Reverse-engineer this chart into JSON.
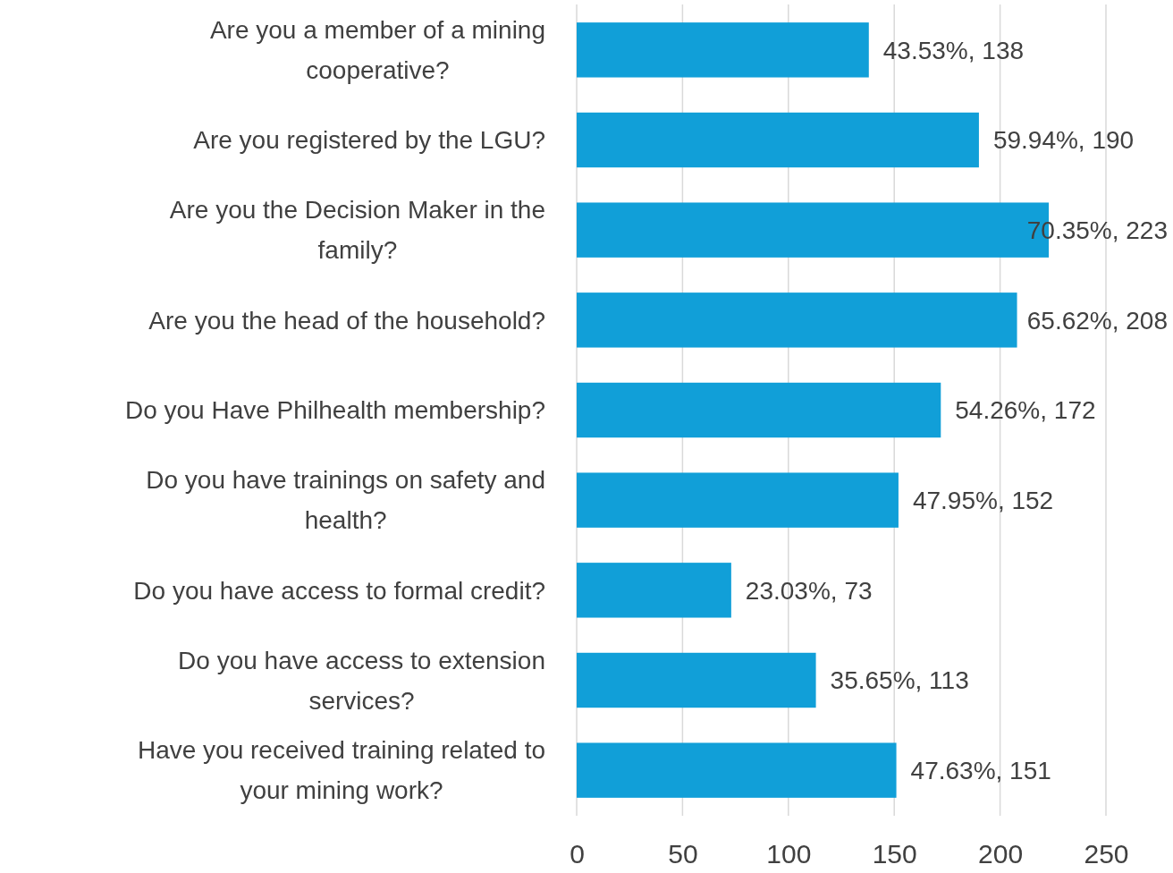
{
  "chart_data": {
    "type": "bar",
    "orientation": "horizontal",
    "categories": [
      "Are you a member of a mining cooperative?",
      "Are you registered by the LGU?",
      "Are you the Decision Maker in the family?",
      "Are you the head of the household?",
      "Do you Have Philhealth membership?",
      "Do you have trainings on safety and health?",
      "Do you have access to formal credit?",
      "Do you have access to extension services?",
      "Have you received training related to your mining work?"
    ],
    "values": [
      138,
      190,
      223,
      208,
      172,
      152,
      73,
      113,
      151
    ],
    "value_labels": [
      "43.53%, 138",
      "59.94%, 190",
      "70.35%, 223",
      "65.62%, 208",
      "54.26%, 172",
      "47.95%, 152",
      "23.03%, 73",
      "35.65%, 113",
      "47.63%, 151"
    ],
    "color": "#119fd8",
    "xlim": [
      0,
      250
    ],
    "xticks": [
      0,
      50,
      100,
      150,
      200,
      250
    ],
    "grid": "x"
  }
}
